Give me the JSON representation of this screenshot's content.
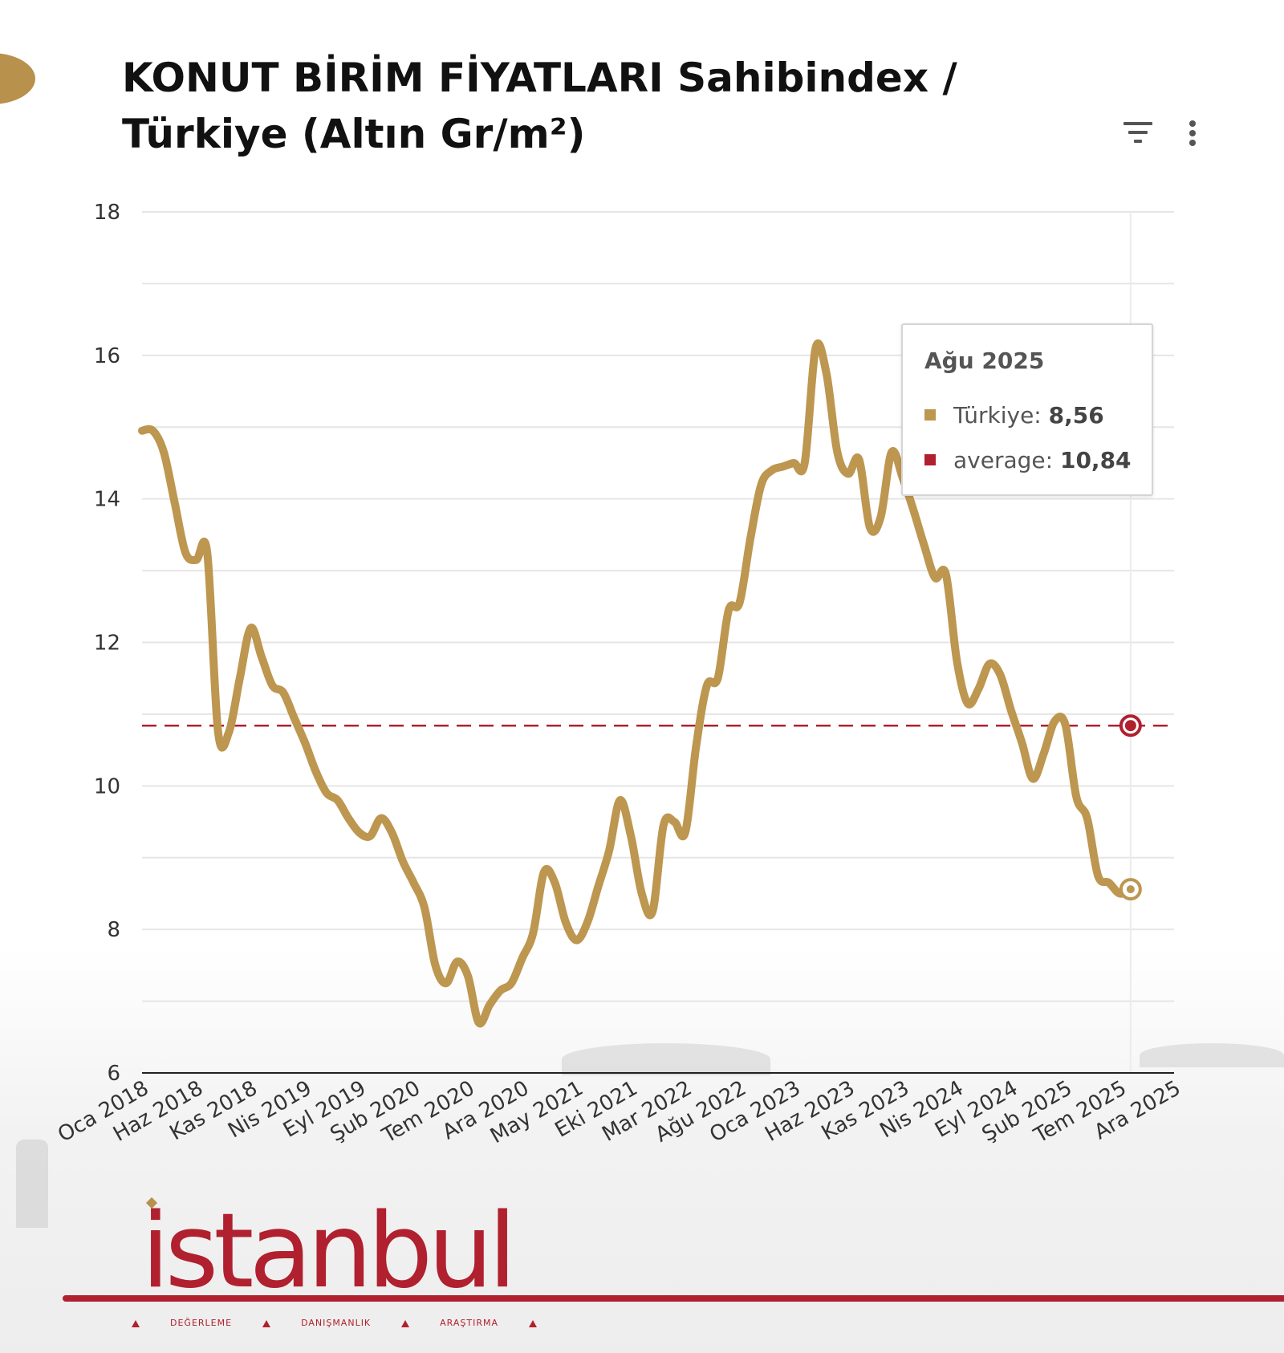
{
  "header": {
    "title": "KONUT BİRİM FİYATLARI Sahibindex / Türkiye (Altın Gr/m²)"
  },
  "colors": {
    "series": "#bd9650",
    "average": "#b0202e",
    "grid": "#e6e6e6",
    "axis": "#222222"
  },
  "icons": [
    "filter-icon",
    "more-vert-icon"
  ],
  "tooltip": {
    "title": "Ağu 2025",
    "rows": [
      {
        "label": "Türkiye:",
        "value": "8,56"
      },
      {
        "label": "average:",
        "value": "10,84"
      }
    ]
  },
  "logo": {
    "word": "istanbul",
    "tags": [
      "DEĞERLEME",
      "DANIŞMANLIK",
      "ARAŞTIRMA"
    ]
  },
  "chart_data": {
    "type": "line",
    "title": "KONUT BİRİM FİYATLARI Sahibindex / Türkiye (Altın Gr/m²)",
    "ylim": [
      6,
      18
    ],
    "yticks": [
      6,
      8,
      10,
      12,
      14,
      16,
      18
    ],
    "xlim": [
      "Oca 2018",
      "Ara 2025"
    ],
    "xtick_labels": [
      "Oca 2018",
      "Haz 2018",
      "Kas 2018",
      "Nis 2019",
      "Eyl 2019",
      "Şub 2020",
      "Tem 2020",
      "Ara 2020",
      "May 2021",
      "Eki 2021",
      "Mar 2022",
      "Ağu 2022",
      "Oca 2023",
      "Haz 2023",
      "Kas 2023",
      "Nis 2024",
      "Eyl 2024",
      "Şub 2025",
      "Tem 2025",
      "Ara 2025"
    ],
    "grid": true,
    "series": [
      {
        "name": "Türkiye",
        "x": [
          "Oca 2018",
          "Şub 2018",
          "Mar 2018",
          "Nis 2018",
          "May 2018",
          "Haz 2018",
          "Tem 2018",
          "Ağu 2018",
          "Eyl 2018",
          "Eki 2018",
          "Kas 2018",
          "Ara 2018",
          "Oca 2019",
          "Şub 2019",
          "Mar 2019",
          "Nis 2019",
          "May 2019",
          "Haz 2019",
          "Tem 2019",
          "Ağu 2019",
          "Eyl 2019",
          "Eki 2019",
          "Kas 2019",
          "Ara 2019",
          "Oca 2020",
          "Şub 2020",
          "Mar 2020",
          "Nis 2020",
          "May 2020",
          "Haz 2020",
          "Tem 2020",
          "Ağu 2020",
          "Eyl 2020",
          "Eki 2020",
          "Kas 2020",
          "Ara 2020",
          "Oca 2021",
          "Şub 2021",
          "Mar 2021",
          "Nis 2021",
          "May 2021",
          "Haz 2021",
          "Tem 2021",
          "Ağu 2021",
          "Eyl 2021",
          "Eki 2021",
          "Kas 2021",
          "Ara 2021",
          "Oca 2022",
          "Şub 2022",
          "Mar 2022",
          "Nis 2022",
          "May 2022",
          "Haz 2022",
          "Tem 2022",
          "Ağu 2022",
          "Eyl 2022",
          "Eki 2022",
          "Kas 2022",
          "Ara 2022",
          "Oca 2023",
          "Şub 2023",
          "Mar 2023",
          "Nis 2023",
          "May 2023",
          "Haz 2023",
          "Tem 2023",
          "Ağu 2023",
          "Eyl 2023",
          "Eki 2023",
          "Kas 2023",
          "Ara 2023",
          "Oca 2024",
          "Şub 2024",
          "Mar 2024",
          "Nis 2024",
          "May 2024",
          "Haz 2024",
          "Tem 2024",
          "Ağu 2024",
          "Eyl 2024",
          "Eki 2024",
          "Kas 2024",
          "Ara 2024",
          "Oca 2025",
          "Şub 2025",
          "Mar 2025",
          "Nis 2025",
          "May 2025",
          "Haz 2025",
          "Tem 2025",
          "Ağu 2025"
        ],
        "values": [
          14.95,
          14.95,
          14.65,
          13.95,
          13.25,
          13.15,
          13.25,
          10.75,
          10.75,
          11.5,
          12.2,
          11.8,
          11.4,
          11.3,
          10.95,
          10.6,
          10.2,
          9.9,
          9.8,
          9.55,
          9.35,
          9.3,
          9.55,
          9.35,
          8.95,
          8.65,
          8.3,
          7.5,
          7.25,
          7.55,
          7.35,
          6.7,
          6.95,
          7.15,
          7.25,
          7.6,
          7.95,
          8.8,
          8.65,
          8.1,
          7.85,
          8.1,
          8.6,
          9.1,
          9.8,
          9.3,
          8.5,
          8.25,
          9.45,
          9.5,
          9.35,
          10.55,
          11.4,
          11.5,
          12.45,
          12.55,
          13.45,
          14.2,
          14.4,
          14.45,
          14.5,
          14.5,
          16.1,
          15.75,
          14.65,
          14.35,
          14.55,
          13.6,
          13.75,
          14.65,
          14.3,
          13.85,
          13.35,
          12.9,
          12.95,
          11.75,
          11.15,
          11.35,
          11.7,
          11.55,
          11.05,
          10.6,
          10.1,
          10.45,
          10.9,
          10.85,
          9.85,
          9.55,
          8.75,
          8.65,
          8.5,
          8.56
        ]
      },
      {
        "name": "average",
        "values": [
          10.84
        ],
        "style": "dashed-constant"
      }
    ],
    "tooltip": {
      "x": "Ağu 2025",
      "Türkiye": 8.56,
      "average": 10.84
    }
  }
}
